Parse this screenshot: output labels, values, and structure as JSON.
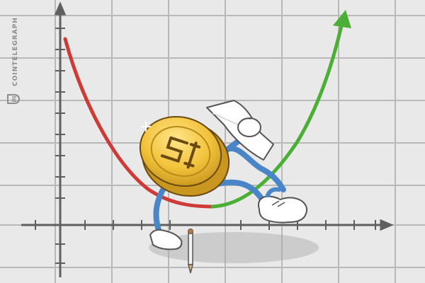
{
  "watermark": {
    "brand": "COINTELEGRAPH"
  },
  "colors": {
    "paper": "#e9e9e9",
    "grid": "#b9b9b9",
    "axis": "#5f5f5f",
    "down_curve": "#cf3a36",
    "up_curve": "#4caf35",
    "coin_face": "#f2c23a",
    "coin_edge": "#c9961f",
    "limbs": "#4a86c7",
    "glove": "#ffffff",
    "paper_sheet": "#ffffff"
  },
  "icons": [
    "cointelegraph-logo-icon",
    "coin-character",
    "pencil-icon",
    "paper-sheet-icon",
    "up-arrow-icon",
    "sneaker-icon"
  ]
}
